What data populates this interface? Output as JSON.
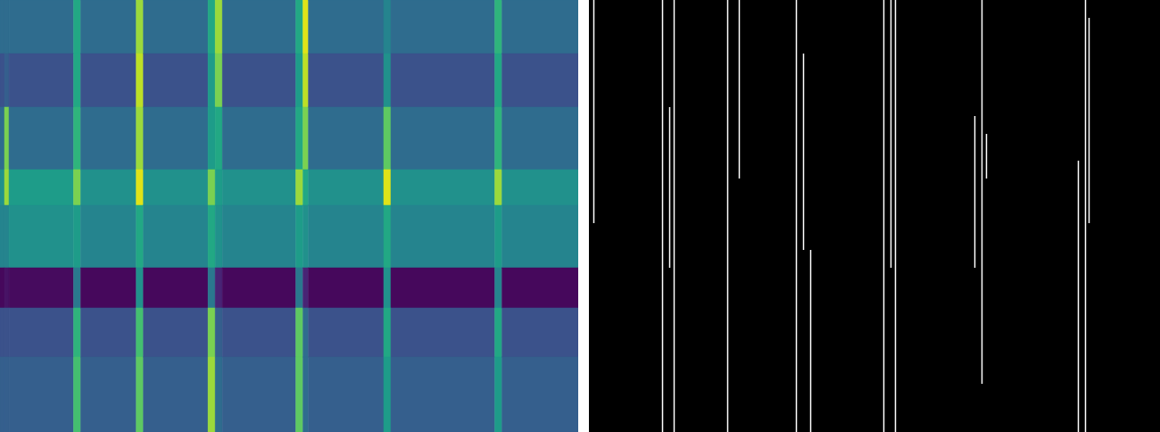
{
  "chart_data": [
    {
      "type": "heatmap",
      "xlim": [
        0,
        645
      ],
      "ylim": [
        0,
        484
      ],
      "xticks": [],
      "yticks": [],
      "tick_labels": false,
      "color": "viridis",
      "color_range": [
        0,
        1
      ],
      "x_edges": [
        0,
        5,
        10,
        82,
        90,
        152,
        160,
        232,
        240,
        248,
        330,
        338,
        344,
        428,
        436,
        552,
        560,
        645
      ],
      "y_edges": [
        0,
        60,
        120,
        190,
        230,
        300,
        345,
        400,
        484
      ],
      "cells": [
        [
          0.35,
          0.35,
          0.35,
          0.6,
          0.35,
          0.85,
          0.35,
          0.6,
          0.85,
          0.35,
          0.6,
          0.95,
          0.35,
          0.45,
          0.35,
          0.65,
          0.35
        ],
        [
          0.25,
          0.3,
          0.25,
          0.6,
          0.25,
          0.9,
          0.25,
          0.55,
          0.8,
          0.25,
          0.55,
          0.9,
          0.25,
          0.5,
          0.25,
          0.6,
          0.25
        ],
        [
          0.35,
          0.8,
          0.35,
          0.65,
          0.35,
          0.85,
          0.35,
          0.55,
          0.6,
          0.35,
          0.6,
          0.8,
          0.35,
          0.75,
          0.35,
          0.65,
          0.35
        ],
        [
          0.5,
          0.85,
          0.55,
          0.8,
          0.5,
          0.95,
          0.5,
          0.8,
          0.55,
          0.5,
          0.85,
          0.6,
          0.5,
          0.95,
          0.5,
          0.85,
          0.5
        ],
        [
          0.45,
          0.45,
          0.5,
          0.55,
          0.45,
          0.6,
          0.45,
          0.6,
          0.5,
          0.45,
          0.55,
          0.5,
          0.45,
          0.6,
          0.45,
          0.55,
          0.45
        ],
        [
          0.02,
          0.05,
          0.03,
          0.4,
          0.02,
          0.5,
          0.02,
          0.4,
          0.1,
          0.02,
          0.4,
          0.1,
          0.02,
          0.5,
          0.02,
          0.45,
          0.02
        ],
        [
          0.25,
          0.25,
          0.25,
          0.65,
          0.25,
          0.7,
          0.25,
          0.8,
          0.3,
          0.25,
          0.75,
          0.35,
          0.25,
          0.6,
          0.25,
          0.6,
          0.25
        ],
        [
          0.3,
          0.3,
          0.3,
          0.7,
          0.3,
          0.75,
          0.3,
          0.85,
          0.35,
          0.3,
          0.75,
          0.35,
          0.3,
          0.55,
          0.3,
          0.55,
          0.3
        ]
      ]
    },
    {
      "type": "edges",
      "xlim": [
        0,
        640
      ],
      "ylim": [
        0,
        484
      ],
      "xticks": [],
      "yticks": [],
      "tick_labels": false,
      "color": "#ffffff",
      "segments": [
        {
          "x": 5,
          "y1": 0,
          "y2": 250
        },
        {
          "x": 82,
          "y1": 0,
          "y2": 484
        },
        {
          "x": 90,
          "y1": 120,
          "y2": 300
        },
        {
          "x": 95,
          "y1": 0,
          "y2": 484
        },
        {
          "x": 155,
          "y1": 0,
          "y2": 484
        },
        {
          "x": 168,
          "y1": 0,
          "y2": 200
        },
        {
          "x": 232,
          "y1": 0,
          "y2": 484
        },
        {
          "x": 240,
          "y1": 60,
          "y2": 280
        },
        {
          "x": 248,
          "y1": 280,
          "y2": 484
        },
        {
          "x": 330,
          "y1": 0,
          "y2": 484
        },
        {
          "x": 338,
          "y1": 0,
          "y2": 300
        },
        {
          "x": 343,
          "y1": 0,
          "y2": 484
        },
        {
          "x": 432,
          "y1": 130,
          "y2": 300
        },
        {
          "x": 440,
          "y1": 0,
          "y2": 430
        },
        {
          "x": 445,
          "y1": 150,
          "y2": 200
        },
        {
          "x": 548,
          "y1": 180,
          "y2": 484
        },
        {
          "x": 556,
          "y1": 0,
          "y2": 484
        },
        {
          "x": 560,
          "y1": 20,
          "y2": 250
        }
      ]
    }
  ]
}
